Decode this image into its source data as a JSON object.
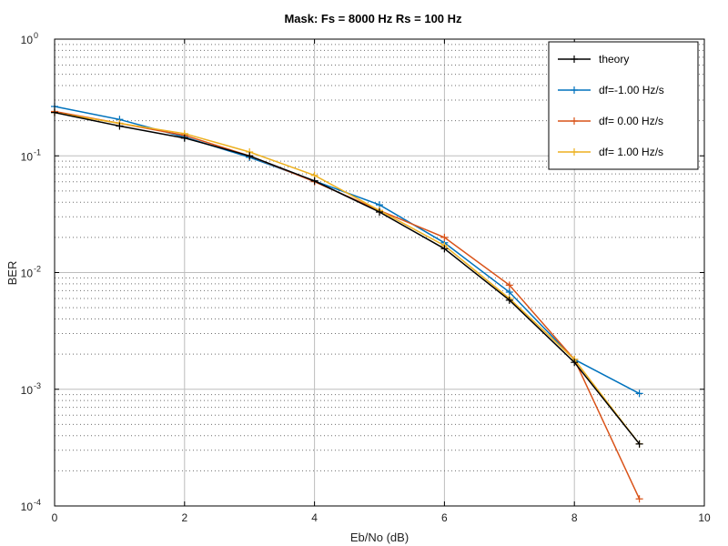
{
  "chart_data": {
    "type": "line",
    "title": "Mask: Fs = 8000 Hz Rs = 100 Hz",
    "xlabel": "Eb/No (dB)",
    "ylabel": "BER",
    "xlim": [
      0,
      10
    ],
    "ylim": [
      0.0001,
      1
    ],
    "yscale": "log",
    "x_ticks": [
      0,
      2,
      4,
      6,
      8,
      10
    ],
    "y_ticks": [
      {
        "base": "10",
        "exp": "0",
        "value": 1
      },
      {
        "base": "10",
        "exp": "-1",
        "value": 0.1
      },
      {
        "base": "10",
        "exp": "-2",
        "value": 0.01
      },
      {
        "base": "10",
        "exp": "-3",
        "value": 0.001
      },
      {
        "base": "10",
        "exp": "-4",
        "value": 0.0001
      }
    ],
    "grid": "on (major solid, minor dotted)",
    "legend_position": "top-right",
    "series": [
      {
        "name": "theory",
        "color": "#000000",
        "x": [
          0,
          1,
          2,
          3,
          4,
          5,
          6,
          7,
          8,
          9
        ],
        "y": [
          0.235,
          0.18,
          0.142,
          0.1,
          0.061,
          0.033,
          0.016,
          0.0058,
          0.0017,
          0.00034
        ]
      },
      {
        "name": "df=-1.00 Hz/s",
        "color": "#0072BD",
        "x": [
          0,
          1,
          2,
          3,
          4,
          5,
          6,
          7,
          8,
          9
        ],
        "y": [
          0.265,
          0.205,
          0.145,
          0.097,
          0.061,
          0.038,
          0.018,
          0.0068,
          0.0018,
          0.00092
        ]
      },
      {
        "name": "df= 0.00 Hz/s",
        "color": "#D95319",
        "x": [
          0,
          1,
          2,
          3,
          4,
          5,
          6,
          7,
          8,
          9
        ],
        "y": [
          0.24,
          0.19,
          0.15,
          0.1,
          0.06,
          0.034,
          0.02,
          0.0078,
          0.0018,
          0.000115
        ]
      },
      {
        "name": "df= 1.00 Hz/s",
        "color": "#EDB120",
        "x": [
          0,
          1,
          2,
          3,
          4,
          5,
          6,
          7,
          8,
          9
        ],
        "y": [
          0.235,
          0.19,
          0.155,
          0.108,
          0.068,
          0.034,
          0.017,
          0.006,
          0.0018,
          0.00034
        ]
      }
    ]
  }
}
